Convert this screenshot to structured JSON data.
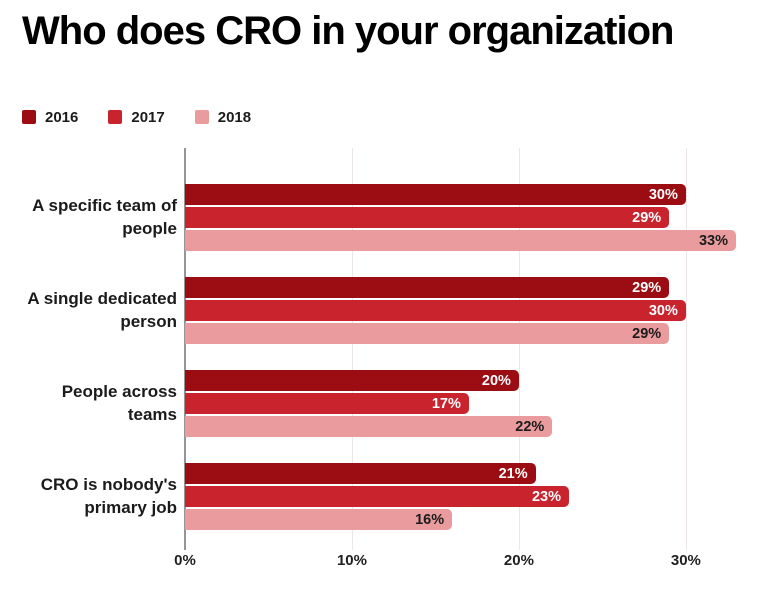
{
  "title": "Who does CRO in your organization",
  "chart_data": {
    "type": "bar",
    "orientation": "horizontal",
    "title": "Who does CRO in your organization",
    "categories": [
      "A specific team of people",
      "A single dedicated person",
      "People across teams",
      "CRO is nobody's primary job"
    ],
    "series": [
      {
        "name": "2016",
        "color": "#9B0D12",
        "label_color": "#ffffff",
        "values": [
          30,
          29,
          20,
          21
        ]
      },
      {
        "name": "2017",
        "color": "#C9232E",
        "label_color": "#ffffff",
        "values": [
          29,
          30,
          17,
          23
        ]
      },
      {
        "name": "2018",
        "color": "#E99B9D",
        "label_color": "#1b1b1b",
        "values": [
          33,
          29,
          22,
          16
        ]
      }
    ],
    "value_suffix": "%",
    "x_ticks": [
      "0%",
      "10%",
      "20%",
      "30%"
    ],
    "x_tick_values": [
      0,
      10,
      20,
      30
    ],
    "xlim": [
      0,
      33.3
    ],
    "grid": "vertical",
    "legend_position": "top-left",
    "colors": {
      "axis_line": "#959595",
      "gridline": "#ece6e6",
      "text": "#1b1b1b"
    }
  }
}
